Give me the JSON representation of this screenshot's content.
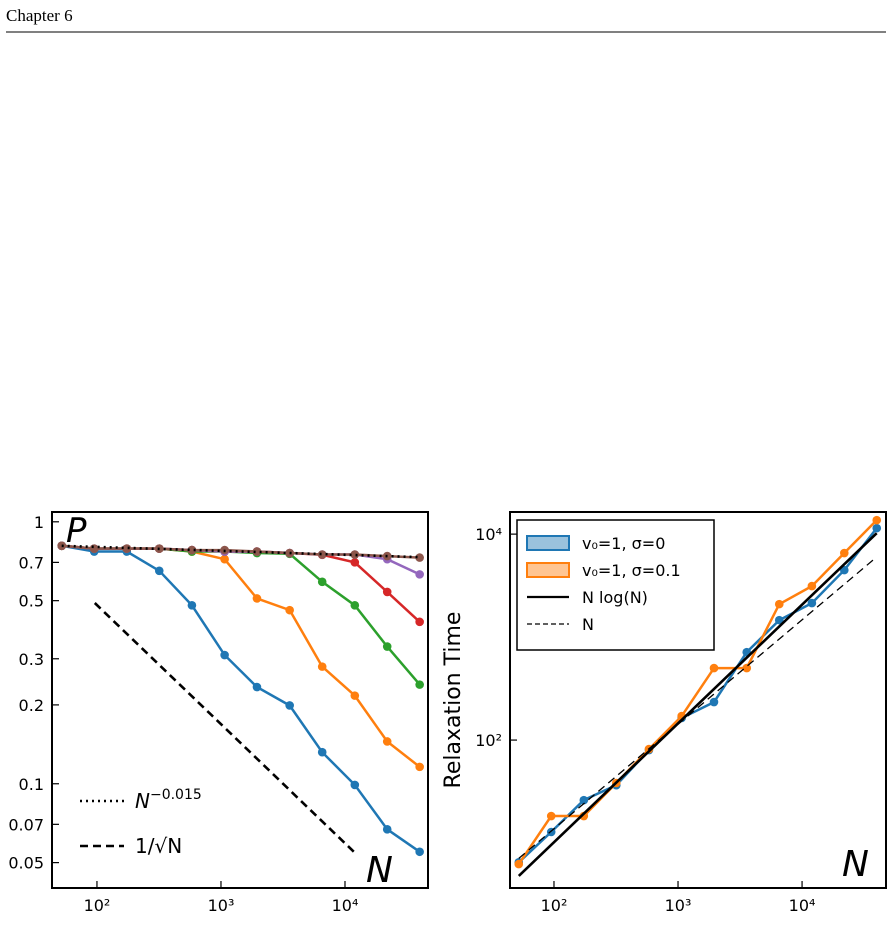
{
  "header": {
    "title": "Chapter 6"
  },
  "chart_data": [
    {
      "type": "line",
      "xlabel": "N",
      "ylabel": "P",
      "log_x": true,
      "log_y": true,
      "xlim": [
        43.4,
        46700
      ],
      "ylim": [
        0.04,
        1.09
      ],
      "xticks": [
        {
          "value": 100,
          "label": "10²"
        },
        {
          "value": 1000,
          "label": "10³"
        },
        {
          "value": 10000,
          "label": "10⁴"
        }
      ],
      "yticks": [
        1,
        0.7,
        0.5,
        0.3,
        0.2,
        0.1,
        0.07,
        0.05
      ],
      "legend": "lower left",
      "x": [
        52,
        95,
        174,
        318,
        583,
        1070,
        1950,
        3580,
        6550,
        12000,
        21900,
        40000
      ],
      "series": [
        {
          "color": "#1f77b4",
          "marker": true,
          "values": [
            0.81,
            0.77,
            0.77,
            0.65,
            0.48,
            0.31,
            0.234,
            0.199,
            0.132,
            0.099,
            0.067,
            0.055
          ]
        },
        {
          "color": "#ff7f0e",
          "marker": true,
          "values": [
            0.81,
            0.79,
            0.79,
            0.79,
            0.77,
            0.72,
            0.51,
            0.46,
            0.28,
            0.217,
            0.145,
            0.116
          ]
        },
        {
          "color": "#2ca02c",
          "marker": true,
          "values": [
            0.81,
            0.79,
            0.79,
            0.79,
            0.77,
            0.77,
            0.76,
            0.755,
            0.59,
            0.48,
            0.334,
            0.239
          ]
        },
        {
          "color": "#d62728",
          "marker": true,
          "values": [
            0.81,
            0.79,
            0.79,
            0.79,
            0.78,
            0.77,
            0.77,
            0.76,
            0.748,
            0.7,
            0.54,
            0.415
          ]
        },
        {
          "color": "#9467bd",
          "marker": true,
          "values": [
            0.81,
            0.79,
            0.79,
            0.79,
            0.78,
            0.77,
            0.77,
            0.76,
            0.75,
            0.75,
            0.72,
            0.63
          ]
        },
        {
          "color": "#8c564b",
          "marker": true,
          "values": [
            0.81,
            0.79,
            0.79,
            0.79,
            0.78,
            0.78,
            0.77,
            0.76,
            0.75,
            0.75,
            0.74,
            0.73
          ]
        },
        {
          "name": "N^−0.015",
          "color": "#000000",
          "linestyle": "dotted",
          "x": [
            52,
            39000
          ],
          "values": [
            0.81,
            0.733
          ]
        },
        {
          "name": "1/√N",
          "color": "#000000",
          "linestyle": "dashed",
          "x": [
            96,
            11800
          ],
          "values": [
            0.49,
            0.055
          ]
        }
      ]
    },
    {
      "type": "line",
      "xlabel": "N",
      "ylabel": "Relaxation Time",
      "log_x": true,
      "log_y": true,
      "xlim": [
        44.2,
        47500
      ],
      "ylim": [
        3.66,
        16400
      ],
      "xticks": [
        {
          "value": 100,
          "label": "10²"
        },
        {
          "value": 1000,
          "label": "10³"
        },
        {
          "value": 10000,
          "label": "10⁴"
        }
      ],
      "yticks": [
        {
          "value": 100,
          "label": "10²"
        },
        {
          "value": 10000,
          "label": "10⁴"
        }
      ],
      "legend": "upper left",
      "x": [
        52,
        95,
        174,
        318,
        583,
        1070,
        1950,
        3580,
        6550,
        12000,
        21900,
        40000
      ],
      "series": [
        {
          "name": "v₀=1, σ=0",
          "color": "#1f77b4",
          "marker": true,
          "values": [
            6.5,
            12.8,
            26.1,
            36.5,
            80,
            164,
            234,
            714,
            1462,
            2140,
            4470,
            11430
          ]
        },
        {
          "name": "v₀=1, σ=0.1",
          "color": "#ff7f0e",
          "marker": true,
          "values": [
            6.25,
            18.3,
            18.3,
            38.3,
            81.8,
            171,
            500,
            500,
            2090,
            3130,
            6550,
            13670
          ]
        },
        {
          "name": "N log(N)",
          "color": "#000000",
          "linestyle": "solid",
          "x": [
            52,
            40000
          ],
          "values": [
            4.8,
            10200
          ]
        },
        {
          "name": "N",
          "color": "#000000",
          "linestyle": "dashed",
          "x": [
            52,
            40000
          ],
          "values": [
            7.1,
            5990
          ]
        }
      ]
    }
  ]
}
